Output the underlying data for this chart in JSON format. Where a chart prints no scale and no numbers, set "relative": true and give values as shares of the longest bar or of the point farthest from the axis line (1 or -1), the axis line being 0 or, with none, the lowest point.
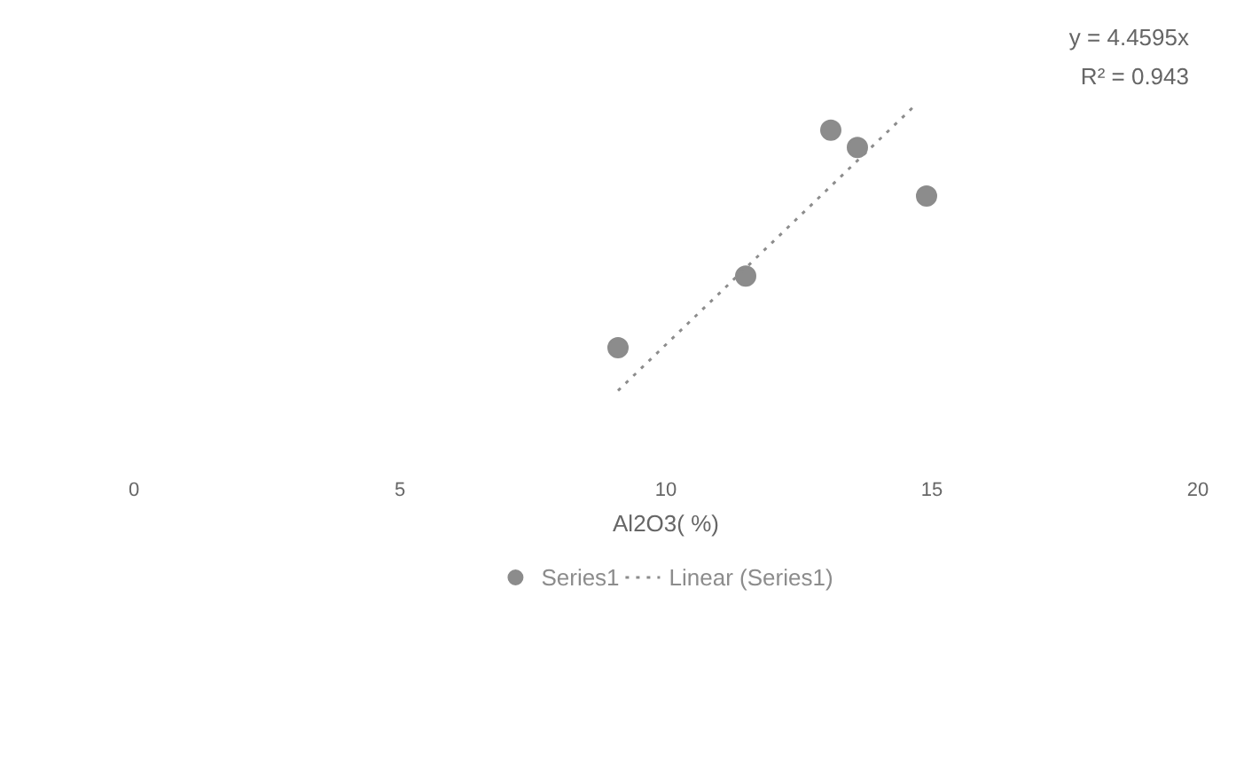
{
  "chart_data": {
    "type": "scatter",
    "xlabel": "Al2O3( %)",
    "relative": true,
    "xlim": [
      0,
      20
    ],
    "xticks": [
      0,
      5,
      10,
      15,
      20
    ],
    "series": [
      {
        "name": "Series1",
        "type": "scatter",
        "color": "#8c8c8c",
        "x": [
          9.1,
          11.5,
          13.1,
          13.6,
          14.9
        ],
        "values": [
          0.15,
          0.4,
          0.91,
          0.85,
          0.68
        ],
        "marker": "circle"
      },
      {
        "name": "Linear (Series1)",
        "type": "line",
        "color": "#8c8c8c",
        "x": [
          9.1,
          14.7
        ],
        "values": [
          0,
          1
        ],
        "line_style": "dotted"
      }
    ],
    "annotations": [
      "y = 4.4595x",
      "R² = 0.943"
    ],
    "legend": "bottom",
    "grid": false
  }
}
